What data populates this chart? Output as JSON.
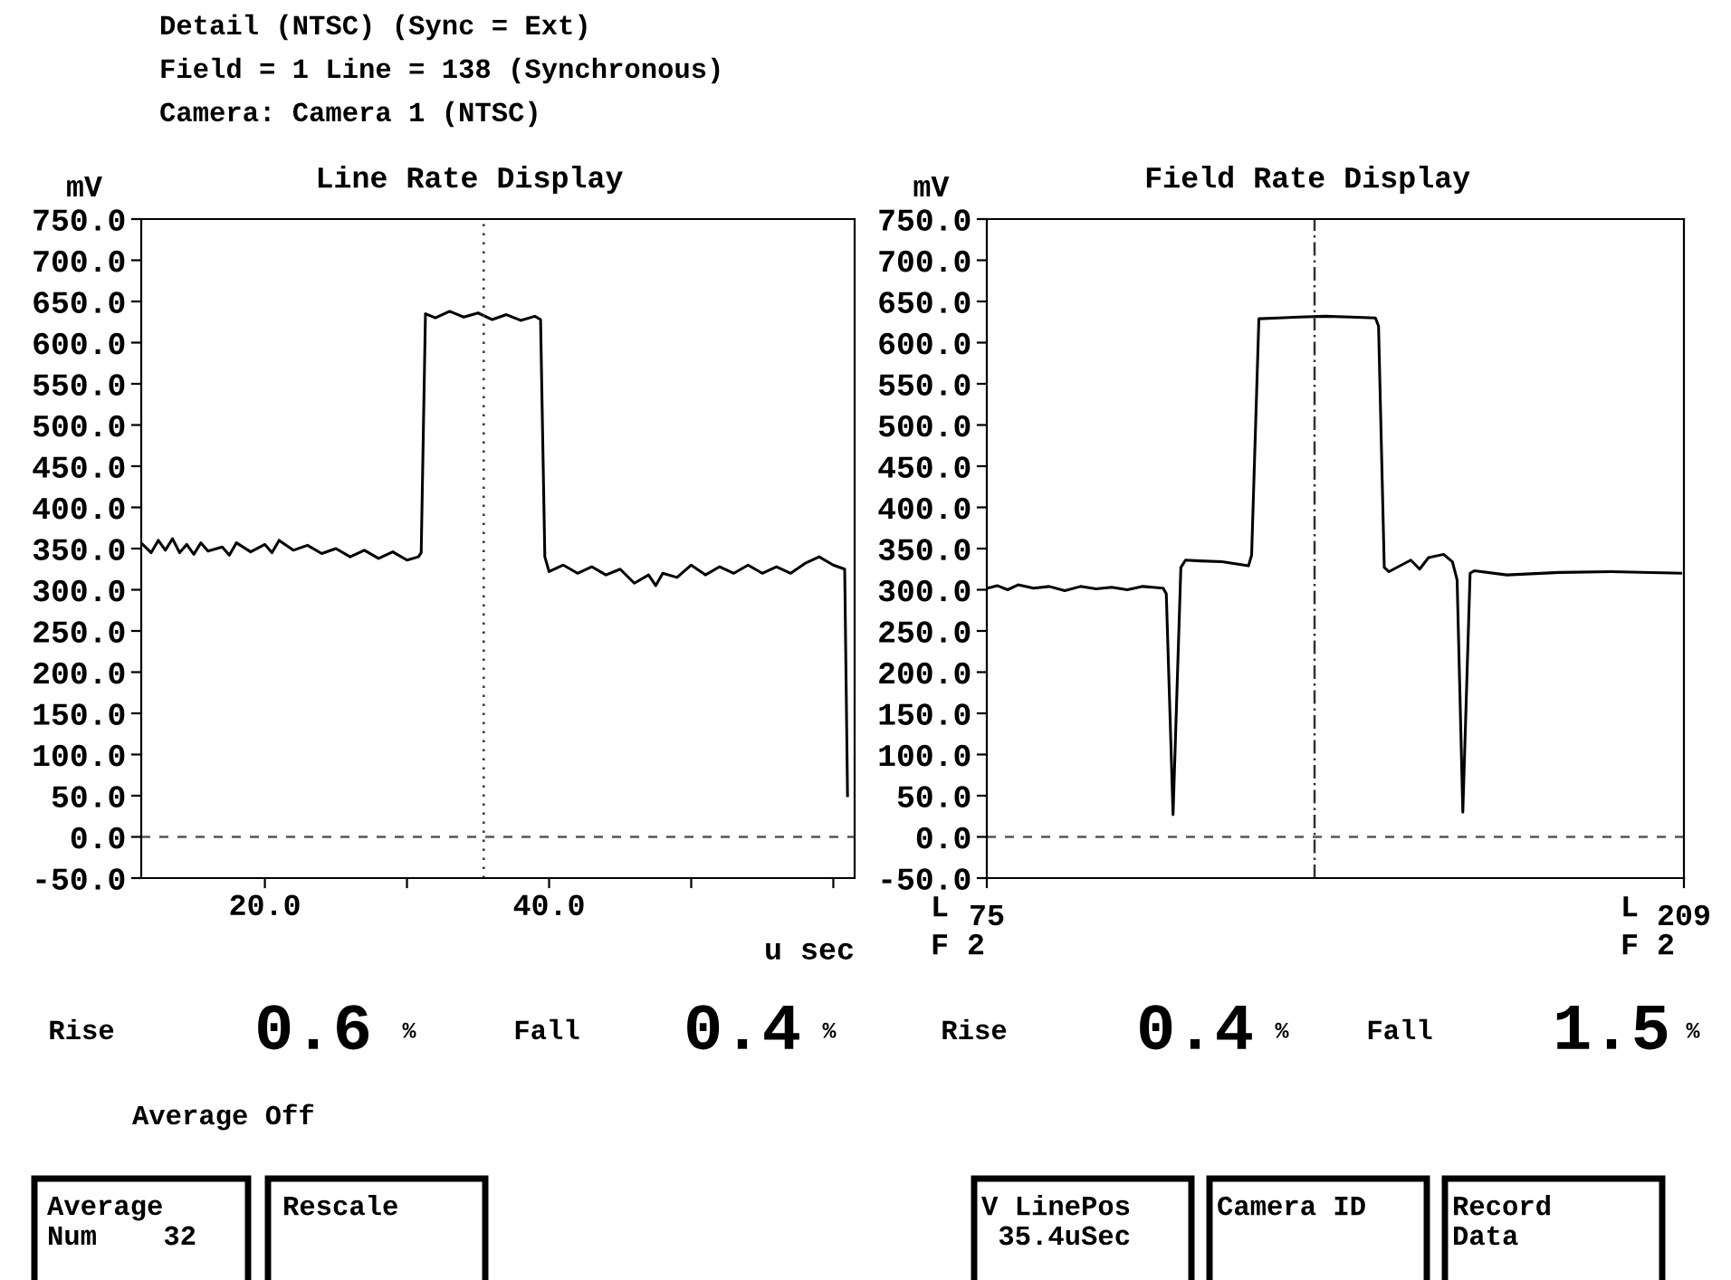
{
  "chart_data": [
    {
      "type": "line",
      "title": "Line Rate Display",
      "ylabel": "mV",
      "xlabel": "u sec",
      "x": [
        11.4,
        12,
        12.5,
        13,
        13.5,
        14,
        14.5,
        15,
        15.5,
        16,
        17,
        17.5,
        18,
        19,
        20,
        20.5,
        21,
        22,
        23,
        24,
        25,
        26,
        27,
        28,
        29,
        30,
        30.8,
        31.0,
        31.3,
        32,
        33,
        34,
        35,
        36,
        37,
        38,
        39,
        39.4,
        39.7,
        40,
        41,
        42,
        43,
        44,
        45,
        46,
        47,
        47.5,
        48,
        49,
        50,
        51,
        52,
        53,
        54,
        55,
        56,
        57,
        58,
        59,
        60,
        60.8,
        61.0
      ],
      "series": [
        {
          "color": "#000000",
          "values": [
            355,
            345,
            360,
            348,
            362,
            345,
            355,
            343,
            357,
            347,
            352,
            342,
            357,
            346,
            355,
            345,
            360,
            348,
            354,
            344,
            350,
            340,
            348,
            338,
            346,
            336,
            340,
            345,
            635,
            630,
            638,
            631,
            636,
            628,
            634,
            627,
            632,
            628,
            340,
            322,
            330,
            320,
            328,
            318,
            325,
            308,
            318,
            305,
            320,
            315,
            330,
            318,
            328,
            320,
            330,
            320,
            328,
            320,
            332,
            340,
            330,
            325,
            50
          ]
        }
      ],
      "xlim": [
        11.3,
        61.5
      ],
      "xticks": [
        {
          "value": 20,
          "label": "20.0"
        },
        {
          "value": 30,
          "label": null
        },
        {
          "value": 40,
          "label": "40.0"
        },
        {
          "value": 50,
          "label": null
        },
        {
          "value": 60,
          "label": null
        }
      ],
      "ylim": [
        -50,
        750
      ],
      "yticks": [
        {
          "value": -50,
          "label": "-50.0"
        },
        {
          "value": 0,
          "label": "0.0"
        },
        {
          "value": 50,
          "label": "50.0"
        },
        {
          "value": 100,
          "label": "100.0"
        },
        {
          "value": 150,
          "label": "150.0"
        },
        {
          "value": 200,
          "label": "200.0"
        },
        {
          "value": 250,
          "label": "250.0"
        },
        {
          "value": 300,
          "label": "300.0"
        },
        {
          "value": 350,
          "label": "350.0"
        },
        {
          "value": 400,
          "label": "400.0"
        },
        {
          "value": 450,
          "label": "450.0"
        },
        {
          "value": 500,
          "label": "500.0"
        },
        {
          "value": 550,
          "label": "550.0"
        },
        {
          "value": 600,
          "label": "600.0"
        },
        {
          "value": 650,
          "label": "650.0"
        },
        {
          "value": 700,
          "label": "700.0"
        },
        {
          "value": 750,
          "label": "750.0"
        }
      ],
      "ref_lines": [
        {
          "axis": "y",
          "value": 0,
          "label": null,
          "line_style": "dashed",
          "color": "#555555"
        },
        {
          "axis": "x",
          "value": 35.4,
          "label": null,
          "line_style": "dotted",
          "color": "#333333"
        }
      ],
      "grid": false,
      "legend": false,
      "marker": "none",
      "line_style": "solid",
      "annotations": [
        "Detail (NTSC) (Sync = Ext)",
        "Field = 1 Line = 138 (Synchronous)",
        "Camera: Camera 1 (NTSC)",
        "Rise",
        "0.6",
        "%",
        "Fall",
        "0.4",
        "%",
        "Average Off",
        "Average\nNum    32",
        "Rescale"
      ]
    },
    {
      "type": "line",
      "title": "Field Rate Display",
      "ylabel": "mV",
      "x": [
        75.2,
        77,
        79,
        81,
        84,
        87,
        90,
        93,
        96,
        99,
        102,
        105,
        108.9,
        109.5,
        110.8,
        112.3,
        113.2,
        116,
        120.2,
        125.3,
        125.9,
        127.3,
        131,
        135,
        140,
        145,
        149.7,
        150.3,
        151.4,
        152.3,
        156.5,
        158.2,
        159.9,
        162.8,
        164.5,
        165.4,
        166.5,
        167.9,
        168.7,
        175,
        185,
        195,
        208.4
      ],
      "series": [
        {
          "color": "#000000",
          "values": [
            302,
            305,
            300,
            306,
            302,
            304,
            299,
            304,
            301,
            303,
            300,
            304,
            302,
            295,
            27,
            327,
            336,
            335,
            334,
            329,
            342,
            629,
            630,
            631,
            632,
            631,
            630,
            620,
            327,
            322,
            336,
            325,
            339,
            343,
            334,
            312,
            30,
            320,
            323,
            318,
            321,
            322,
            320
          ]
        }
      ],
      "xlim": [
        75,
        209
      ],
      "xticks": [
        75,
        209
      ],
      "ylim": [
        -50,
        750
      ],
      "yticks": [
        {
          "value": -50,
          "label": "-50.0"
        },
        {
          "value": 0,
          "label": "0.0"
        },
        {
          "value": 50,
          "label": "50.0"
        },
        {
          "value": 100,
          "label": "100.0"
        },
        {
          "value": 150,
          "label": "150.0"
        },
        {
          "value": 200,
          "label": "200.0"
        },
        {
          "value": 250,
          "label": "250.0"
        },
        {
          "value": 300,
          "label": "300.0"
        },
        {
          "value": 350,
          "label": "350.0"
        },
        {
          "value": 400,
          "label": "400.0"
        },
        {
          "value": 450,
          "label": "450.0"
        },
        {
          "value": 500,
          "label": "500.0"
        },
        {
          "value": 550,
          "label": "550.0"
        },
        {
          "value": 600,
          "label": "600.0"
        },
        {
          "value": 650,
          "label": "650.0"
        },
        {
          "value": 700,
          "label": "700.0"
        },
        {
          "value": 750,
          "label": "750.0"
        }
      ],
      "ref_lines": [
        {
          "axis": "y",
          "value": 0,
          "label": null,
          "line_style": "dashed",
          "color": "#555555"
        },
        {
          "axis": "x",
          "value": 138,
          "label": null,
          "line_style": "dashdot",
          "color": "#333333"
        }
      ],
      "grid": false,
      "legend": false,
      "marker": "none",
      "line_style": "solid",
      "annotations": [
        "Rise",
        "0.4",
        "%",
        "Fall",
        "1.5",
        "%",
        "V LinePos\n 35.4uSec",
        "Camera ID",
        "Record\nData",
        "L",
        "F 2",
        "L",
        "F 2"
      ]
    }
  ]
}
